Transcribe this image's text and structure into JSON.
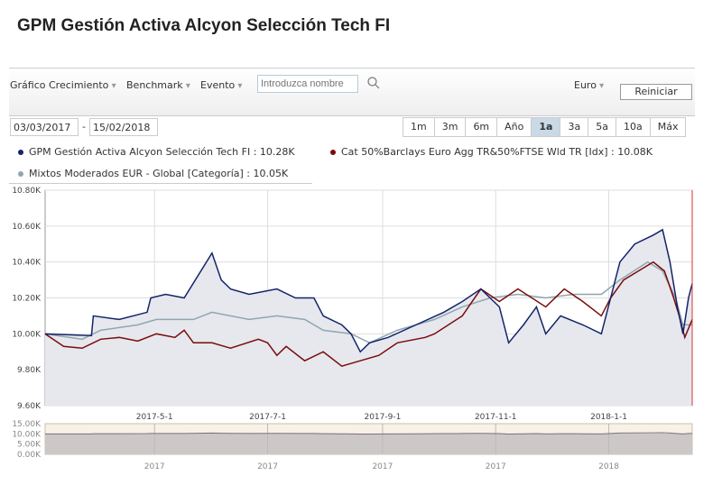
{
  "title": "GPM Gestión Activa Alcyon Selección Tech FI",
  "toolbar": {
    "growth": "Gráfico Crecimiento",
    "benchmark": "Benchmark",
    "event": "Evento",
    "search_placeholder": "Introduzca nombre",
    "currency": "Euro",
    "reset": "Reiniciar"
  },
  "dates": {
    "from": "03/03/2017",
    "sep": "-",
    "to": "15/02/2018"
  },
  "periods": [
    "1m",
    "3m",
    "6m",
    "Año",
    "1a",
    "3a",
    "5a",
    "10a",
    "Máx"
  ],
  "active_period": "1a",
  "legend": [
    {
      "label": "GPM Gestión Activa Alcyon Selección Tech FI : 10.28K",
      "color": "#14246a"
    },
    {
      "label": "Cat 50%Barclays Euro Agg TR&50%FTSE Wld TR [Idx] : 10.08K",
      "color": "#7a0c0c"
    },
    {
      "label": "Mixtos Moderados EUR - Global [Categoría] : 10.05K",
      "color": "#8fa6b0"
    }
  ],
  "chart_data": {
    "type": "line",
    "xlabel": "",
    "ylabel": "",
    "x_unit": "days since 2017-03-03",
    "xlim": [
      0,
      349
    ],
    "ylim": [
      9.6,
      10.8
    ],
    "yticks": [
      "10.80K",
      "10.60K",
      "10.40K",
      "10.20K",
      "10.00K",
      "9.80K",
      "9.60K"
    ],
    "xticks": [
      {
        "day": 59,
        "label": "2017-5-1"
      },
      {
        "day": 120,
        "label": "2017-7-1"
      },
      {
        "day": 182,
        "label": "2017-9-1"
      },
      {
        "day": 243,
        "label": "2017-11-1"
      },
      {
        "day": 304,
        "label": "2018-1-1"
      }
    ],
    "series": [
      {
        "name": "GPM Gestión Activa Alcyon Selección Tech FI",
        "color": "#14246a",
        "points": [
          [
            0,
            10.0
          ],
          [
            25,
            9.99
          ],
          [
            26,
            10.1
          ],
          [
            40,
            10.08
          ],
          [
            55,
            10.12
          ],
          [
            57,
            10.2
          ],
          [
            65,
            10.22
          ],
          [
            75,
            10.2
          ],
          [
            90,
            10.45
          ],
          [
            95,
            10.3
          ],
          [
            100,
            10.25
          ],
          [
            110,
            10.22
          ],
          [
            125,
            10.25
          ],
          [
            135,
            10.2
          ],
          [
            145,
            10.2
          ],
          [
            150,
            10.1
          ],
          [
            160,
            10.05
          ],
          [
            165,
            10.0
          ],
          [
            170,
            9.9
          ],
          [
            175,
            9.95
          ],
          [
            185,
            9.98
          ],
          [
            200,
            10.05
          ],
          [
            215,
            10.12
          ],
          [
            225,
            10.18
          ],
          [
            235,
            10.25
          ],
          [
            240,
            10.2
          ],
          [
            245,
            10.15
          ],
          [
            250,
            9.95
          ],
          [
            258,
            10.05
          ],
          [
            265,
            10.15
          ],
          [
            270,
            10.0
          ],
          [
            278,
            10.1
          ],
          [
            290,
            10.05
          ],
          [
            300,
            10.0
          ],
          [
            305,
            10.2
          ],
          [
            310,
            10.4
          ],
          [
            318,
            10.5
          ],
          [
            328,
            10.55
          ],
          [
            333,
            10.58
          ],
          [
            337,
            10.4
          ],
          [
            341,
            10.15
          ],
          [
            344,
            10.0
          ],
          [
            347,
            10.2
          ],
          [
            349,
            10.28
          ]
        ]
      },
      {
        "name": "Cat 50%Barclays Euro Agg TR&50%FTSE Wld TR [Idx]",
        "color": "#7a0c0c",
        "points": [
          [
            0,
            10.0
          ],
          [
            10,
            9.93
          ],
          [
            20,
            9.92
          ],
          [
            30,
            9.97
          ],
          [
            40,
            9.98
          ],
          [
            50,
            9.96
          ],
          [
            60,
            10.0
          ],
          [
            70,
            9.98
          ],
          [
            75,
            10.02
          ],
          [
            80,
            9.95
          ],
          [
            90,
            9.95
          ],
          [
            100,
            9.92
          ],
          [
            115,
            9.97
          ],
          [
            120,
            9.95
          ],
          [
            125,
            9.88
          ],
          [
            130,
            9.93
          ],
          [
            140,
            9.85
          ],
          [
            150,
            9.9
          ],
          [
            160,
            9.82
          ],
          [
            170,
            9.85
          ],
          [
            180,
            9.88
          ],
          [
            190,
            9.95
          ],
          [
            205,
            9.98
          ],
          [
            210,
            10.0
          ],
          [
            225,
            10.1
          ],
          [
            235,
            10.25
          ],
          [
            245,
            10.18
          ],
          [
            255,
            10.25
          ],
          [
            270,
            10.15
          ],
          [
            280,
            10.25
          ],
          [
            290,
            10.18
          ],
          [
            300,
            10.1
          ],
          [
            305,
            10.2
          ],
          [
            312,
            10.3
          ],
          [
            320,
            10.35
          ],
          [
            328,
            10.4
          ],
          [
            334,
            10.35
          ],
          [
            339,
            10.2
          ],
          [
            342,
            10.1
          ],
          [
            345,
            9.98
          ],
          [
            349,
            10.08
          ]
        ]
      },
      {
        "name": "Mixtos Moderados EUR - Global [Categoría]",
        "color": "#8fa6b0",
        "points": [
          [
            0,
            10.0
          ],
          [
            20,
            9.97
          ],
          [
            30,
            10.02
          ],
          [
            50,
            10.05
          ],
          [
            60,
            10.08
          ],
          [
            80,
            10.08
          ],
          [
            90,
            10.12
          ],
          [
            110,
            10.08
          ],
          [
            125,
            10.1
          ],
          [
            140,
            10.08
          ],
          [
            150,
            10.02
          ],
          [
            165,
            10.0
          ],
          [
            175,
            9.95
          ],
          [
            190,
            10.02
          ],
          [
            210,
            10.08
          ],
          [
            225,
            10.15
          ],
          [
            240,
            10.2
          ],
          [
            255,
            10.22
          ],
          [
            270,
            10.2
          ],
          [
            285,
            10.22
          ],
          [
            300,
            10.22
          ],
          [
            310,
            10.3
          ],
          [
            325,
            10.4
          ],
          [
            333,
            10.35
          ],
          [
            340,
            10.2
          ],
          [
            344,
            10.05
          ],
          [
            349,
            10.05
          ]
        ]
      }
    ]
  },
  "navigator": {
    "yticks": [
      "15.00K",
      "10.00K",
      "5.00K",
      "0.00K"
    ],
    "xticks": [
      "2017",
      "2017",
      "2017",
      "2017",
      "2018"
    ]
  }
}
